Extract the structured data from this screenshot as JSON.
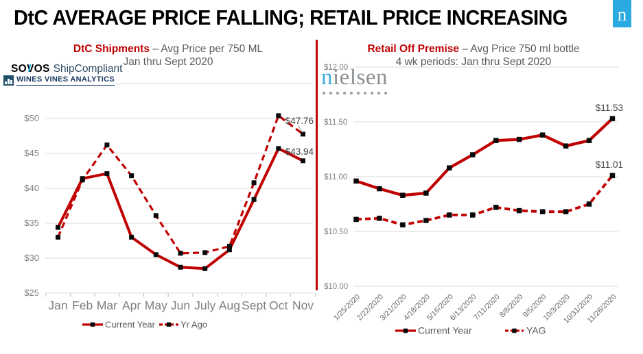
{
  "header": {
    "title": "DtC AVERAGE PRICE FALLING; RETAIL PRICE INCREASING",
    "badge_letter": "n"
  },
  "logos": {
    "sovos_pre": "SO",
    "sovos_v": "V",
    "sovos_post": "OS",
    "shipcompliant": "ShipCompliant",
    "wines_vines": "WINES VINES ANALYTICS",
    "nielsen_first": "n",
    "nielsen_rest": "ielsen",
    "nielsen_dots": 10
  },
  "colors": {
    "line_red": "#C00000",
    "grid": "#D9D9D9",
    "tick": "#BFBFBF",
    "axis_text": "#808080",
    "legend_text": "#595959",
    "data_label": "#404040",
    "marker": "#0a0a0a",
    "nielsen_blue": "#29ABE2"
  },
  "chart_data": [
    {
      "id": "dtc-shipments",
      "type": "line",
      "title_em": "DtC Shipments",
      "title_rest": " – Avg Price per 750 ML",
      "subtitle": "Jan thru Sept 2020",
      "categories": [
        "Jan",
        "Feb",
        "Mar",
        "Apr",
        "May",
        "Jun",
        "July",
        "Aug",
        "Sept",
        "Oct",
        "Nov"
      ],
      "series": [
        {
          "name": "Current Year",
          "style": "solid",
          "values": [
            34.4,
            41.4,
            42.1,
            33.0,
            30.5,
            28.7,
            28.5,
            31.2,
            38.4,
            45.7,
            43.94
          ]
        },
        {
          "name": "Yr Ago",
          "style": "dashed",
          "values": [
            33.0,
            41.2,
            46.2,
            41.8,
            36.1,
            30.7,
            30.8,
            31.7,
            40.8,
            50.4,
            47.76
          ]
        }
      ],
      "ylim": [
        25,
        55
      ],
      "yticks": [
        25,
        30,
        35,
        40,
        45,
        50
      ],
      "ytick_labels": [
        "$25",
        "$30",
        "$35",
        "$40",
        "$45",
        "$50"
      ],
      "grid": true,
      "legend_position": "bottom",
      "end_labels": [
        {
          "series": "Yr Ago",
          "text": "$47.76"
        },
        {
          "series": "Current Year",
          "text": "$43.94"
        }
      ]
    },
    {
      "id": "retail-off-premise",
      "type": "line",
      "title_em": "Retail Off Premise",
      "title_rest": " – Avg Price 750 ml bottle",
      "subtitle": "4 wk periods: Jan thru Sept 2020",
      "categories": [
        "1/25/2020",
        "2/22/2020",
        "3/21/2020",
        "4/18/2020",
        "5/16/2020",
        "6/13/2020",
        "7/11/2020",
        "8/8/2020",
        "9/5/2020",
        "10/3/2020",
        "10/31/2020",
        "11/28/2020"
      ],
      "series": [
        {
          "name": "Current Year",
          "style": "solid",
          "values": [
            10.96,
            10.89,
            10.83,
            10.85,
            11.08,
            11.2,
            11.33,
            11.34,
            11.38,
            11.28,
            11.33,
            11.53
          ]
        },
        {
          "name": "YAG",
          "style": "dashed",
          "values": [
            10.61,
            10.62,
            10.56,
            10.6,
            10.65,
            10.65,
            10.72,
            10.69,
            10.68,
            10.68,
            10.75,
            11.01
          ]
        }
      ],
      "ylim": [
        10.0,
        12.0
      ],
      "yticks": [
        10.0,
        10.5,
        11.0,
        11.5,
        12.0
      ],
      "ytick_labels": [
        "$10.00",
        "$10.50",
        "$11.00",
        "$11.50",
        "$12.00"
      ],
      "grid": true,
      "legend_position": "bottom",
      "end_labels": [
        {
          "series": "Current Year",
          "text": "$11.53"
        },
        {
          "series": "YAG",
          "text": "$11.01"
        }
      ]
    }
  ]
}
